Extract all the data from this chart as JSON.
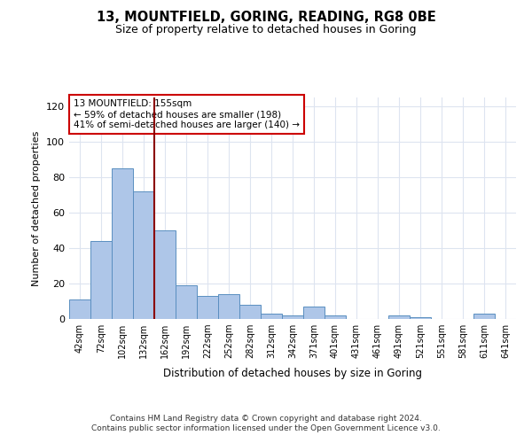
{
  "title": "13, MOUNTFIELD, GORING, READING, RG8 0BE",
  "subtitle": "Size of property relative to detached houses in Goring",
  "xlabel": "Distribution of detached houses by size in Goring",
  "ylabel": "Number of detached properties",
  "categories": [
    "42sqm",
    "72sqm",
    "102sqm",
    "132sqm",
    "162sqm",
    "192sqm",
    "222sqm",
    "252sqm",
    "282sqm",
    "312sqm",
    "342sqm",
    "371sqm",
    "401sqm",
    "431sqm",
    "461sqm",
    "491sqm",
    "521sqm",
    "551sqm",
    "581sqm",
    "611sqm",
    "641sqm"
  ],
  "values": [
    11,
    44,
    85,
    72,
    50,
    19,
    13,
    14,
    8,
    3,
    2,
    7,
    2,
    0,
    0,
    2,
    1,
    0,
    0,
    3,
    0
  ],
  "bar_color": "#aec6e8",
  "bar_edge_color": "#5a8fc0",
  "vline_color": "#8b0000",
  "vline_x": 3.5,
  "annotation_text": "13 MOUNTFIELD: 155sqm\n← 59% of detached houses are smaller (198)\n41% of semi-detached houses are larger (140) →",
  "annotation_box_color": "#ffffff",
  "annotation_box_edge": "#cc0000",
  "ylim": [
    0,
    125
  ],
  "yticks": [
    0,
    20,
    40,
    60,
    80,
    100,
    120
  ],
  "grid_color": "#dde4f0",
  "background_color": "#ffffff",
  "footer_line1": "Contains HM Land Registry data © Crown copyright and database right 2024.",
  "footer_line2": "Contains public sector information licensed under the Open Government Licence v3.0."
}
